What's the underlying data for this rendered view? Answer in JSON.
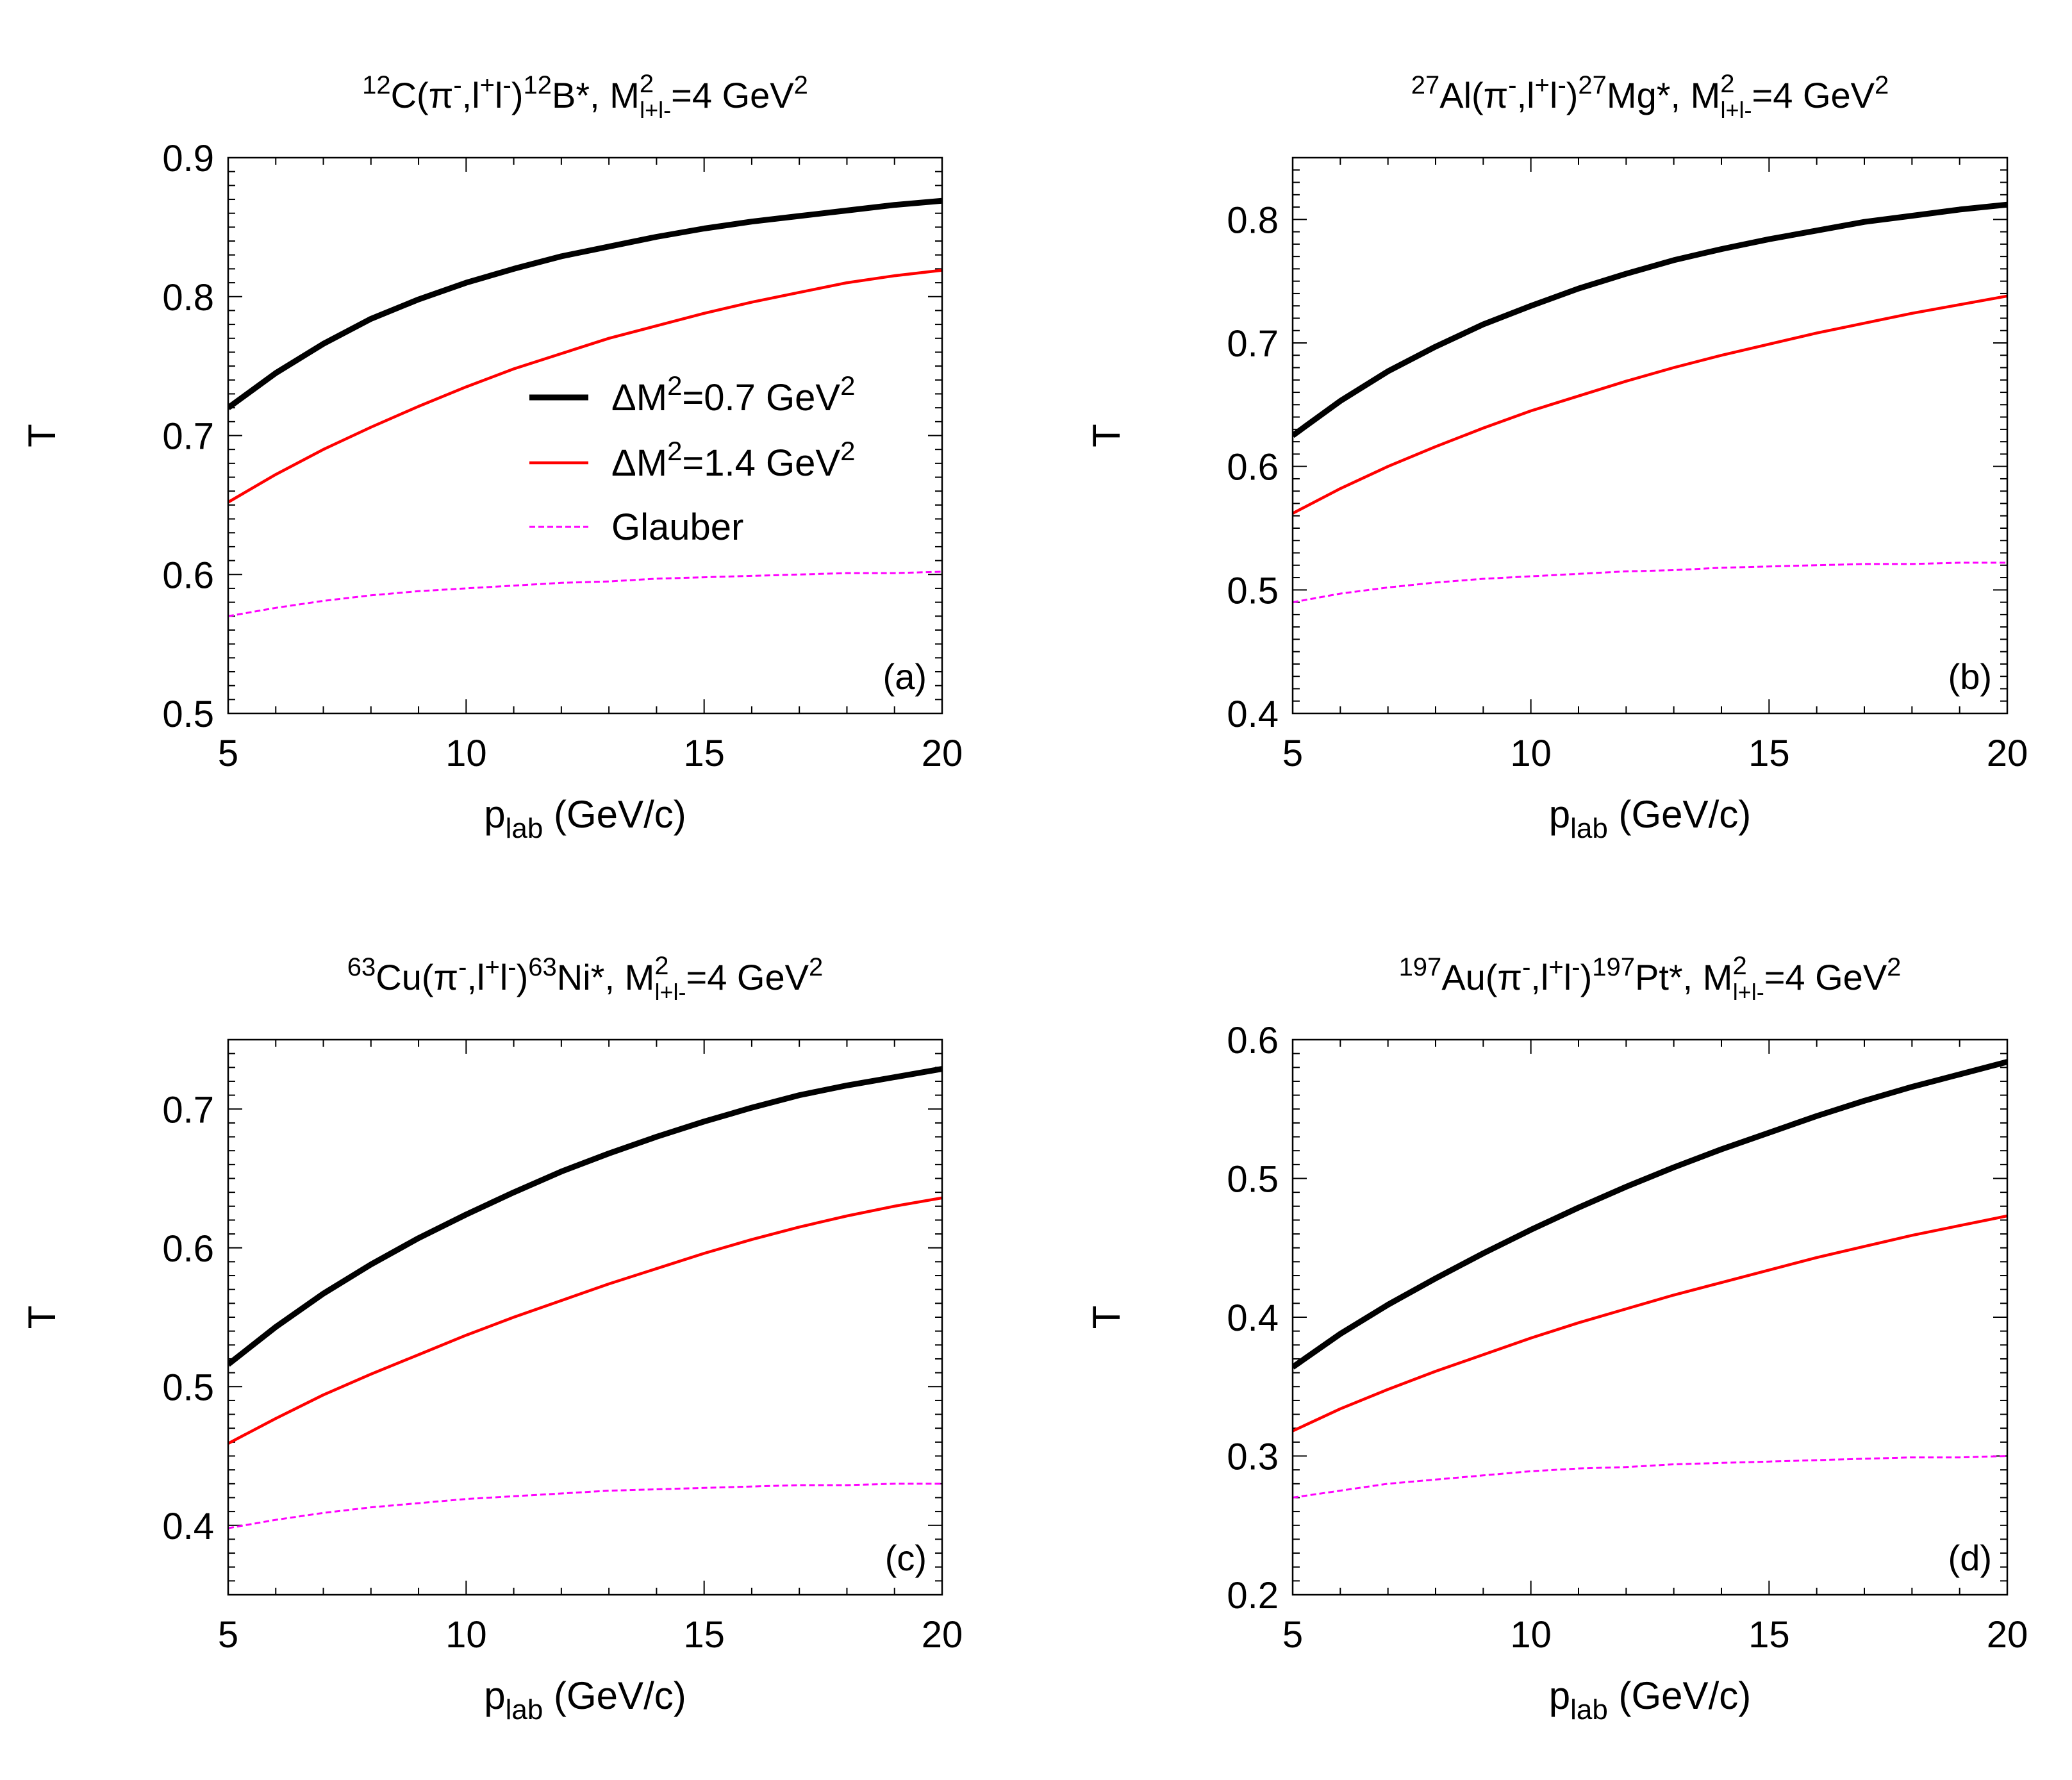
{
  "colors": {
    "black": "#000000",
    "red": "#ff0000",
    "magenta": "#ff00ff",
    "axis": "#000000"
  },
  "shared": {
    "ylabel": "T",
    "xlabel_main": "p",
    "xlabel_sub": "lab",
    "xlabel_unit": " (GeV/c)"
  },
  "chart_data": [
    {
      "type": "line",
      "panel_label": "(a)",
      "title": {
        "pre_sup": "12",
        "nucleus": "C(π",
        "pi_sup": "-",
        "mid": ",l",
        "lp_sup": "+",
        "l": "l",
        "lm_sup": "-",
        "close": ")",
        "post_sup": "12",
        "product": "B*, M",
        "m_sub": "l+l-",
        "m_sup": "2",
        "eq": "=4 GeV",
        "unit_sup": "2"
      },
      "xlim": [
        5,
        20
      ],
      "ylim": [
        0.5,
        0.9
      ],
      "xticks": [
        "5",
        "10",
        "15",
        "20"
      ],
      "yticks": [
        "0.5",
        "0.6",
        "0.7",
        "0.8",
        "0.9"
      ],
      "x": [
        5,
        6,
        7,
        8,
        9,
        10,
        11,
        12,
        13,
        14,
        15,
        16,
        17,
        18,
        19,
        20
      ],
      "legend": {
        "show": true,
        "position": "center",
        "entries": [
          {
            "pre": "ΔM",
            "sup": "2",
            "post": "=0.7 GeV",
            "sup2": "2",
            "color": "#000000"
          },
          {
            "pre": "ΔM",
            "sup": "2",
            "post": "=1.4 GeV",
            "sup2": "2",
            "color": "#ff0000"
          },
          {
            "pre": "Glauber",
            "sup": "",
            "post": "",
            "sup2": "",
            "color": "#ff00ff"
          }
        ]
      },
      "series": [
        {
          "name": "ΔM2=0.7 GeV2",
          "color": "#000000",
          "values": [
            0.72,
            0.745,
            0.766,
            0.784,
            0.798,
            0.81,
            0.82,
            0.829,
            0.836,
            0.843,
            0.849,
            0.854,
            0.858,
            0.862,
            0.866,
            0.869
          ]
        },
        {
          "name": "ΔM2=1.4 GeV2",
          "color": "#ff0000",
          "values": [
            0.652,
            0.672,
            0.69,
            0.706,
            0.721,
            0.735,
            0.748,
            0.759,
            0.77,
            0.779,
            0.788,
            0.796,
            0.803,
            0.81,
            0.815,
            0.819
          ]
        },
        {
          "name": "Glauber",
          "color": "#ff00ff",
          "values": [
            0.57,
            0.576,
            0.581,
            0.585,
            0.588,
            0.59,
            0.592,
            0.594,
            0.595,
            0.597,
            0.598,
            0.599,
            0.6,
            0.601,
            0.601,
            0.602
          ]
        }
      ]
    },
    {
      "type": "line",
      "panel_label": "(b)",
      "title": {
        "pre_sup": "27",
        "nucleus": "Al(π",
        "pi_sup": "-",
        "mid": ",l",
        "lp_sup": "+",
        "l": "l",
        "lm_sup": "-",
        "close": ")",
        "post_sup": "27",
        "product": "Mg*, M",
        "m_sub": "l+l-",
        "m_sup": "2",
        "eq": "=4 GeV",
        "unit_sup": "2"
      },
      "xlim": [
        5,
        20
      ],
      "ylim": [
        0.4,
        0.85
      ],
      "xticks": [
        "5",
        "10",
        "15",
        "20"
      ],
      "yticks": [
        "0.4",
        "0.5",
        "0.6",
        "0.7",
        "0.8"
      ],
      "x": [
        5,
        6,
        7,
        8,
        9,
        10,
        11,
        12,
        13,
        14,
        15,
        16,
        17,
        18,
        19,
        20
      ],
      "legend": {
        "show": false,
        "position": "none",
        "entries": []
      },
      "series": [
        {
          "name": "ΔM2=0.7 GeV2",
          "color": "#000000",
          "values": [
            0.625,
            0.653,
            0.677,
            0.697,
            0.715,
            0.73,
            0.744,
            0.756,
            0.767,
            0.776,
            0.784,
            0.791,
            0.798,
            0.803,
            0.808,
            0.812
          ]
        },
        {
          "name": "ΔM2=1.4 GeV2",
          "color": "#ff0000",
          "values": [
            0.562,
            0.582,
            0.6,
            0.616,
            0.631,
            0.645,
            0.657,
            0.669,
            0.68,
            0.69,
            0.699,
            0.708,
            0.716,
            0.724,
            0.731,
            0.738
          ]
        },
        {
          "name": "Glauber",
          "color": "#ff00ff",
          "values": [
            0.49,
            0.497,
            0.502,
            0.506,
            0.509,
            0.511,
            0.513,
            0.515,
            0.516,
            0.518,
            0.519,
            0.52,
            0.521,
            0.521,
            0.522,
            0.522
          ]
        }
      ]
    },
    {
      "type": "line",
      "panel_label": "(c)",
      "title": {
        "pre_sup": "63",
        "nucleus": "Cu(π",
        "pi_sup": "-",
        "mid": ",l",
        "lp_sup": "+",
        "l": "l",
        "lm_sup": "-",
        "close": ")",
        "post_sup": "63",
        "product": "Ni*, M",
        "m_sub": "l+l-",
        "m_sup": "2",
        "eq": "=4 GeV",
        "unit_sup": "2"
      },
      "xlim": [
        5,
        20
      ],
      "ylim": [
        0.35,
        0.75
      ],
      "xticks": [
        "5",
        "10",
        "15",
        "20"
      ],
      "yticks": [
        "0.4",
        "0.5",
        "0.6",
        "0.7"
      ],
      "x": [
        5,
        6,
        7,
        8,
        9,
        10,
        11,
        12,
        13,
        14,
        15,
        16,
        17,
        18,
        19,
        20
      ],
      "legend": {
        "show": false,
        "position": "none",
        "entries": []
      },
      "series": [
        {
          "name": "ΔM2=0.7 GeV2",
          "color": "#000000",
          "values": [
            0.516,
            0.543,
            0.567,
            0.588,
            0.607,
            0.624,
            0.64,
            0.655,
            0.668,
            0.68,
            0.691,
            0.701,
            0.71,
            0.717,
            0.723,
            0.729
          ]
        },
        {
          "name": "ΔM2=1.4 GeV2",
          "color": "#ff0000",
          "values": [
            0.459,
            0.477,
            0.494,
            0.509,
            0.523,
            0.537,
            0.55,
            0.562,
            0.574,
            0.585,
            0.596,
            0.606,
            0.615,
            0.623,
            0.63,
            0.636
          ]
        },
        {
          "name": "Glauber",
          "color": "#ff00ff",
          "values": [
            0.398,
            0.404,
            0.409,
            0.413,
            0.416,
            0.419,
            0.421,
            0.423,
            0.425,
            0.426,
            0.427,
            0.428,
            0.429,
            0.429,
            0.43,
            0.43
          ]
        }
      ]
    },
    {
      "type": "line",
      "panel_label": "(d)",
      "title": {
        "pre_sup": "197",
        "nucleus": "Au(π",
        "pi_sup": "-",
        "mid": ",l",
        "lp_sup": "+",
        "l": "l",
        "lm_sup": "-",
        "close": ")",
        "post_sup": "197",
        "product": "Pt*, M",
        "m_sub": "l+l-",
        "m_sup": "2",
        "eq": "=4 GeV",
        "unit_sup": "2"
      },
      "xlim": [
        5,
        20
      ],
      "ylim": [
        0.2,
        0.6
      ],
      "xticks": [
        "5",
        "10",
        "15",
        "20"
      ],
      "yticks": [
        "0.2",
        "0.3",
        "0.4",
        "0.5",
        "0.6"
      ],
      "x": [
        5,
        6,
        7,
        8,
        9,
        10,
        11,
        12,
        13,
        14,
        15,
        16,
        17,
        18,
        19,
        20
      ],
      "legend": {
        "show": false,
        "position": "none",
        "entries": []
      },
      "series": [
        {
          "name": "ΔM2=0.7 GeV2",
          "color": "#000000",
          "values": [
            0.364,
            0.388,
            0.409,
            0.428,
            0.446,
            0.463,
            0.479,
            0.494,
            0.508,
            0.521,
            0.533,
            0.545,
            0.556,
            0.566,
            0.575,
            0.584
          ]
        },
        {
          "name": "ΔM2=1.4 GeV2",
          "color": "#ff0000",
          "values": [
            0.318,
            0.334,
            0.348,
            0.361,
            0.373,
            0.385,
            0.396,
            0.406,
            0.416,
            0.425,
            0.434,
            0.443,
            0.451,
            0.459,
            0.466,
            0.473
          ]
        },
        {
          "name": "Glauber",
          "color": "#ff00ff",
          "values": [
            0.27,
            0.275,
            0.28,
            0.283,
            0.286,
            0.289,
            0.291,
            0.292,
            0.294,
            0.295,
            0.296,
            0.297,
            0.298,
            0.299,
            0.299,
            0.3
          ]
        }
      ]
    }
  ]
}
